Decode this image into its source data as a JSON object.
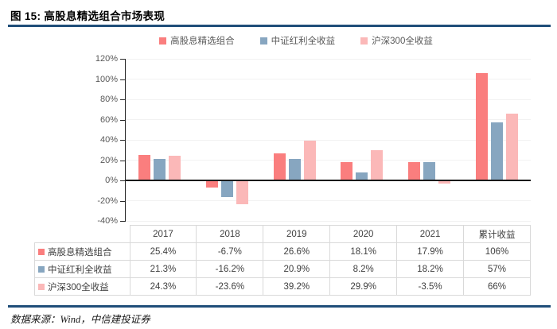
{
  "figure": {
    "title": "图 15: 高股息精选组合市场表现",
    "source": "数据来源：Wind，中信建投证券"
  },
  "colors": {
    "rule": "#1F4E79",
    "grid": "#F2F2F2",
    "axis": "#262626",
    "zero_line": "#1A1A1A",
    "tick_label": "#595959",
    "table_border": "#D9D9D9",
    "table_text": "#404040"
  },
  "chart_data": {
    "type": "bar",
    "title": "",
    "xlabel": "",
    "ylabel": "",
    "categories": [
      "2017",
      "2018",
      "2019",
      "2020",
      "2021",
      "累计收益"
    ],
    "series": [
      {
        "name": "高股息精选组合",
        "color": "#FA7E7E",
        "values": [
          25.4,
          -6.7,
          26.6,
          18.1,
          17.9,
          106
        ]
      },
      {
        "name": "中证红利全收益",
        "color": "#87A6C0",
        "values": [
          21.3,
          -16.2,
          20.9,
          8.2,
          18.2,
          57
        ]
      },
      {
        "name": "沪深300全收益",
        "color": "#FBB8B8",
        "values": [
          24.3,
          -23.6,
          39.2,
          29.9,
          -3.5,
          66
        ]
      }
    ],
    "ylim": [
      -40,
      120
    ],
    "yticks": [
      120,
      100,
      80,
      60,
      40,
      20,
      0,
      -20,
      -40
    ],
    "ytick_labels": [
      "120%",
      "100%",
      "80%",
      "60%",
      "40%",
      "20%",
      "0%",
      "-20%",
      "-40%"
    ],
    "grid": true,
    "legend_position": "top"
  },
  "table": {
    "header": [
      "",
      "2017",
      "2018",
      "2019",
      "2020",
      "2021",
      "累计收益"
    ],
    "rows": [
      {
        "label": "高股息精选组合",
        "cells": [
          "25.4%",
          "-6.7%",
          "26.6%",
          "18.1%",
          "17.9%",
          "106%"
        ]
      },
      {
        "label": "中证红利全收益",
        "cells": [
          "21.3%",
          "-16.2%",
          "20.9%",
          "8.2%",
          "18.2%",
          "57%"
        ]
      },
      {
        "label": "沪深300全收益",
        "cells": [
          "24.3%",
          "-23.6%",
          "39.2%",
          "29.9%",
          "-3.5%",
          "66%"
        ]
      }
    ]
  }
}
